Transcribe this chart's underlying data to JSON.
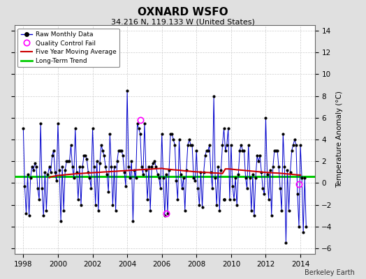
{
  "title": "OXNARD WSFO",
  "subtitle": "34.216 N, 119.133 W (United States)",
  "ylabel": "Temperature Anomaly (°C)",
  "credit": "Berkeley Earth",
  "xlim": [
    1997.5,
    2014.83
  ],
  "ylim": [
    -6.5,
    14.5
  ],
  "yticks": [
    -6,
    -4,
    -2,
    0,
    2,
    4,
    6,
    8,
    10,
    12,
    14
  ],
  "xticks": [
    1998,
    2000,
    2002,
    2004,
    2006,
    2008,
    2010,
    2012,
    2014
  ],
  "raw_color": "#0000cc",
  "ma_color": "#cc0000",
  "trend_color": "#00cc00",
  "qc_color": "#ff00ff",
  "bg_color": "#e0e0e0",
  "plot_bg": "#ffffff",
  "long_term_trend_intercept": 0.6,
  "raw_data": [
    [
      1998.0,
      5.0
    ],
    [
      1998.083,
      -0.3
    ],
    [
      1998.167,
      -2.8
    ],
    [
      1998.25,
      0.8
    ],
    [
      1998.333,
      -3.0
    ],
    [
      1998.417,
      0.5
    ],
    [
      1998.5,
      1.5
    ],
    [
      1998.583,
      1.2
    ],
    [
      1998.667,
      1.8
    ],
    [
      1998.75,
      1.5
    ],
    [
      1998.833,
      -0.5
    ],
    [
      1998.917,
      -1.5
    ],
    [
      1999.0,
      5.5
    ],
    [
      1999.083,
      -0.5
    ],
    [
      1999.167,
      -3.0
    ],
    [
      1999.25,
      1.0
    ],
    [
      1999.333,
      -2.5
    ],
    [
      1999.417,
      0.8
    ],
    [
      1999.5,
      1.5
    ],
    [
      1999.583,
      1.0
    ],
    [
      1999.667,
      2.5
    ],
    [
      1999.75,
      3.0
    ],
    [
      1999.833,
      1.0
    ],
    [
      1999.917,
      0.2
    ],
    [
      2000.0,
      5.5
    ],
    [
      2000.083,
      1.2
    ],
    [
      2000.167,
      -3.5
    ],
    [
      2000.25,
      1.5
    ],
    [
      2000.333,
      -2.5
    ],
    [
      2000.417,
      1.2
    ],
    [
      2000.5,
      2.0
    ],
    [
      2000.583,
      2.0
    ],
    [
      2000.667,
      2.0
    ],
    [
      2000.75,
      3.5
    ],
    [
      2000.833,
      1.5
    ],
    [
      2000.917,
      0.5
    ],
    [
      2001.0,
      5.0
    ],
    [
      2001.083,
      1.0
    ],
    [
      2001.167,
      -1.5
    ],
    [
      2001.25,
      1.5
    ],
    [
      2001.333,
      -2.0
    ],
    [
      2001.417,
      1.5
    ],
    [
      2001.5,
      2.5
    ],
    [
      2001.583,
      2.5
    ],
    [
      2001.667,
      2.2
    ],
    [
      2001.75,
      1.0
    ],
    [
      2001.833,
      0.5
    ],
    [
      2001.917,
      -0.5
    ],
    [
      2002.0,
      5.0
    ],
    [
      2002.083,
      1.5
    ],
    [
      2002.167,
      -2.0
    ],
    [
      2002.25,
      2.0
    ],
    [
      2002.333,
      -2.5
    ],
    [
      2002.417,
      1.8
    ],
    [
      2002.5,
      3.5
    ],
    [
      2002.583,
      3.0
    ],
    [
      2002.667,
      2.5
    ],
    [
      2002.75,
      1.5
    ],
    [
      2002.833,
      0.8
    ],
    [
      2002.917,
      -0.8
    ],
    [
      2003.0,
      4.5
    ],
    [
      2003.083,
      1.5
    ],
    [
      2003.167,
      -2.0
    ],
    [
      2003.25,
      1.5
    ],
    [
      2003.333,
      -2.5
    ],
    [
      2003.417,
      2.0
    ],
    [
      2003.5,
      3.0
    ],
    [
      2003.583,
      3.0
    ],
    [
      2003.667,
      3.0
    ],
    [
      2003.75,
      2.5
    ],
    [
      2003.833,
      1.0
    ],
    [
      2003.917,
      -0.3
    ],
    [
      2004.0,
      8.5
    ],
    [
      2004.083,
      1.5
    ],
    [
      2004.167,
      0.5
    ],
    [
      2004.25,
      2.0
    ],
    [
      2004.333,
      -3.5
    ],
    [
      2004.417,
      1.2
    ],
    [
      2004.5,
      0.5
    ],
    [
      2004.583,
      5.5
    ],
    [
      2004.667,
      5.0
    ],
    [
      2004.75,
      4.5
    ],
    [
      2004.833,
      1.5
    ],
    [
      2004.917,
      0.8
    ],
    [
      2005.0,
      5.5
    ],
    [
      2005.083,
      1.2
    ],
    [
      2005.167,
      -1.5
    ],
    [
      2005.25,
      1.5
    ],
    [
      2005.333,
      -2.5
    ],
    [
      2005.417,
      1.5
    ],
    [
      2005.5,
      1.8
    ],
    [
      2005.583,
      2.0
    ],
    [
      2005.667,
      1.5
    ],
    [
      2005.75,
      0.8
    ],
    [
      2005.833,
      0.5
    ],
    [
      2005.917,
      -0.5
    ],
    [
      2006.0,
      4.5
    ],
    [
      2006.083,
      0.5
    ],
    [
      2006.167,
      -3.0
    ],
    [
      2006.25,
      0.8
    ],
    [
      2006.333,
      -2.8
    ],
    [
      2006.417,
      1.2
    ],
    [
      2006.5,
      4.5
    ],
    [
      2006.583,
      4.5
    ],
    [
      2006.667,
      4.0
    ],
    [
      2006.75,
      3.5
    ],
    [
      2006.833,
      0.2
    ],
    [
      2006.917,
      -1.5
    ],
    [
      2007.0,
      4.0
    ],
    [
      2007.083,
      0.8
    ],
    [
      2007.167,
      -0.5
    ],
    [
      2007.25,
      0.5
    ],
    [
      2007.333,
      -2.5
    ],
    [
      2007.417,
      1.2
    ],
    [
      2007.5,
      3.5
    ],
    [
      2007.583,
      4.0
    ],
    [
      2007.667,
      3.5
    ],
    [
      2007.75,
      3.5
    ],
    [
      2007.833,
      0.5
    ],
    [
      2007.917,
      0.2
    ],
    [
      2008.0,
      3.0
    ],
    [
      2008.083,
      -0.5
    ],
    [
      2008.167,
      -2.0
    ],
    [
      2008.25,
      1.0
    ],
    [
      2008.333,
      -2.2
    ],
    [
      2008.417,
      1.0
    ],
    [
      2008.5,
      2.5
    ],
    [
      2008.583,
      3.0
    ],
    [
      2008.667,
      3.0
    ],
    [
      2008.75,
      3.5
    ],
    [
      2008.833,
      1.0
    ],
    [
      2008.917,
      -0.5
    ],
    [
      2009.0,
      8.0
    ],
    [
      2009.083,
      0.5
    ],
    [
      2009.167,
      -2.0
    ],
    [
      2009.25,
      1.5
    ],
    [
      2009.333,
      -2.5
    ],
    [
      2009.417,
      1.2
    ],
    [
      2009.5,
      3.5
    ],
    [
      2009.583,
      5.0
    ],
    [
      2009.667,
      3.0
    ],
    [
      2009.75,
      3.5
    ],
    [
      2009.833,
      5.0
    ],
    [
      2009.917,
      -1.5
    ],
    [
      2010.0,
      3.5
    ],
    [
      2010.083,
      -0.3
    ],
    [
      2010.167,
      -1.5
    ],
    [
      2010.25,
      0.5
    ],
    [
      2010.333,
      -2.0
    ],
    [
      2010.417,
      0.8
    ],
    [
      2010.5,
      3.0
    ],
    [
      2010.583,
      3.5
    ],
    [
      2010.667,
      3.0
    ],
    [
      2010.75,
      3.0
    ],
    [
      2010.833,
      0.5
    ],
    [
      2010.917,
      -0.5
    ],
    [
      2011.0,
      3.5
    ],
    [
      2011.083,
      0.5
    ],
    [
      2011.167,
      -2.5
    ],
    [
      2011.25,
      0.8
    ],
    [
      2011.333,
      -3.0
    ],
    [
      2011.417,
      0.5
    ],
    [
      2011.5,
      2.5
    ],
    [
      2011.583,
      2.0
    ],
    [
      2011.667,
      2.5
    ],
    [
      2011.75,
      1.0
    ],
    [
      2011.833,
      -0.5
    ],
    [
      2011.917,
      -1.0
    ],
    [
      2012.0,
      6.0
    ],
    [
      2012.083,
      0.8
    ],
    [
      2012.167,
      -1.5
    ],
    [
      2012.25,
      1.2
    ],
    [
      2012.333,
      -3.0
    ],
    [
      2012.417,
      1.5
    ],
    [
      2012.5,
      3.0
    ],
    [
      2012.583,
      3.0
    ],
    [
      2012.667,
      3.0
    ],
    [
      2012.75,
      1.5
    ],
    [
      2012.833,
      -0.5
    ],
    [
      2012.917,
      -2.5
    ],
    [
      2013.0,
      4.5
    ],
    [
      2013.083,
      1.5
    ],
    [
      2013.167,
      -5.5
    ],
    [
      2013.25,
      1.2
    ],
    [
      2013.333,
      -2.5
    ],
    [
      2013.417,
      1.0
    ],
    [
      2013.5,
      3.0
    ],
    [
      2013.583,
      3.5
    ],
    [
      2013.667,
      4.0
    ],
    [
      2013.75,
      3.5
    ],
    [
      2013.833,
      -1.0
    ],
    [
      2013.917,
      -4.0
    ],
    [
      2014.0,
      3.5
    ],
    [
      2014.083,
      0.5
    ],
    [
      2014.167,
      -4.5
    ],
    [
      2014.25,
      0.5
    ],
    [
      2014.333,
      -4.0
    ]
  ],
  "qc_fail_points": [
    [
      2004.75,
      5.8
    ],
    [
      2006.25,
      -2.8
    ],
    [
      2013.917,
      -0.1
    ]
  ],
  "outlier_points": [
    [
      2009.583,
      -1.5
    ]
  ],
  "moving_avg": [
    [
      1999.5,
      0.5
    ],
    [
      1999.667,
      0.6
    ],
    [
      1999.833,
      0.65
    ],
    [
      2000.0,
      0.7
    ],
    [
      2000.167,
      0.72
    ],
    [
      2000.333,
      0.75
    ],
    [
      2000.5,
      0.78
    ],
    [
      2000.667,
      0.8
    ],
    [
      2000.833,
      0.82
    ],
    [
      2001.0,
      0.85
    ],
    [
      2001.167,
      0.87
    ],
    [
      2001.333,
      0.88
    ],
    [
      2001.5,
      0.9
    ],
    [
      2001.667,
      0.92
    ],
    [
      2001.833,
      0.93
    ],
    [
      2002.0,
      0.95
    ],
    [
      2002.167,
      0.97
    ],
    [
      2002.333,
      0.98
    ],
    [
      2002.5,
      1.0
    ],
    [
      2002.667,
      1.02
    ],
    [
      2002.833,
      1.03
    ],
    [
      2003.0,
      1.05
    ],
    [
      2003.167,
      1.07
    ],
    [
      2003.333,
      1.08
    ],
    [
      2003.5,
      1.1
    ],
    [
      2003.667,
      1.12
    ],
    [
      2003.833,
      1.13
    ],
    [
      2004.0,
      1.15
    ],
    [
      2004.167,
      1.17
    ],
    [
      2004.333,
      1.18
    ],
    [
      2004.5,
      1.2
    ],
    [
      2004.667,
      1.22
    ],
    [
      2004.833,
      1.23
    ],
    [
      2005.0,
      1.25
    ],
    [
      2005.167,
      1.27
    ],
    [
      2005.333,
      1.28
    ],
    [
      2005.5,
      1.3
    ],
    [
      2005.667,
      1.32
    ],
    [
      2005.833,
      1.33
    ],
    [
      2006.0,
      1.35
    ],
    [
      2006.167,
      1.3
    ],
    [
      2006.333,
      1.28
    ],
    [
      2006.5,
      1.25
    ],
    [
      2006.667,
      1.22
    ],
    [
      2006.833,
      1.2
    ],
    [
      2007.0,
      1.18
    ],
    [
      2007.167,
      1.15
    ],
    [
      2007.333,
      1.12
    ],
    [
      2007.5,
      1.1
    ],
    [
      2007.667,
      1.08
    ],
    [
      2007.833,
      1.05
    ],
    [
      2008.0,
      1.03
    ],
    [
      2008.167,
      1.02
    ],
    [
      2008.333,
      1.0
    ],
    [
      2008.5,
      0.98
    ],
    [
      2008.667,
      0.97
    ],
    [
      2008.833,
      0.95
    ],
    [
      2009.0,
      0.93
    ],
    [
      2009.167,
      0.92
    ],
    [
      2009.333,
      0.9
    ],
    [
      2009.5,
      0.88
    ],
    [
      2009.667,
      1.3
    ],
    [
      2009.833,
      1.3
    ],
    [
      2010.0,
      1.28
    ],
    [
      2010.167,
      1.25
    ],
    [
      2010.333,
      1.22
    ],
    [
      2010.5,
      1.2
    ],
    [
      2010.667,
      1.18
    ],
    [
      2010.833,
      1.15
    ],
    [
      2011.0,
      1.13
    ],
    [
      2011.167,
      1.1
    ],
    [
      2011.333,
      1.08
    ],
    [
      2011.5,
      1.05
    ],
    [
      2011.667,
      1.03
    ],
    [
      2011.833,
      1.0
    ],
    [
      2012.0,
      0.98
    ],
    [
      2012.167,
      0.97
    ],
    [
      2012.333,
      0.95
    ],
    [
      2012.5,
      0.93
    ],
    [
      2012.667,
      0.92
    ],
    [
      2012.833,
      0.9
    ],
    [
      2013.0,
      0.88
    ],
    [
      2013.167,
      0.85
    ],
    [
      2013.333,
      0.83
    ],
    [
      2013.5,
      0.8
    ],
    [
      2013.667,
      0.78
    ],
    [
      2013.833,
      0.75
    ],
    [
      2014.0,
      0.73
    ]
  ]
}
